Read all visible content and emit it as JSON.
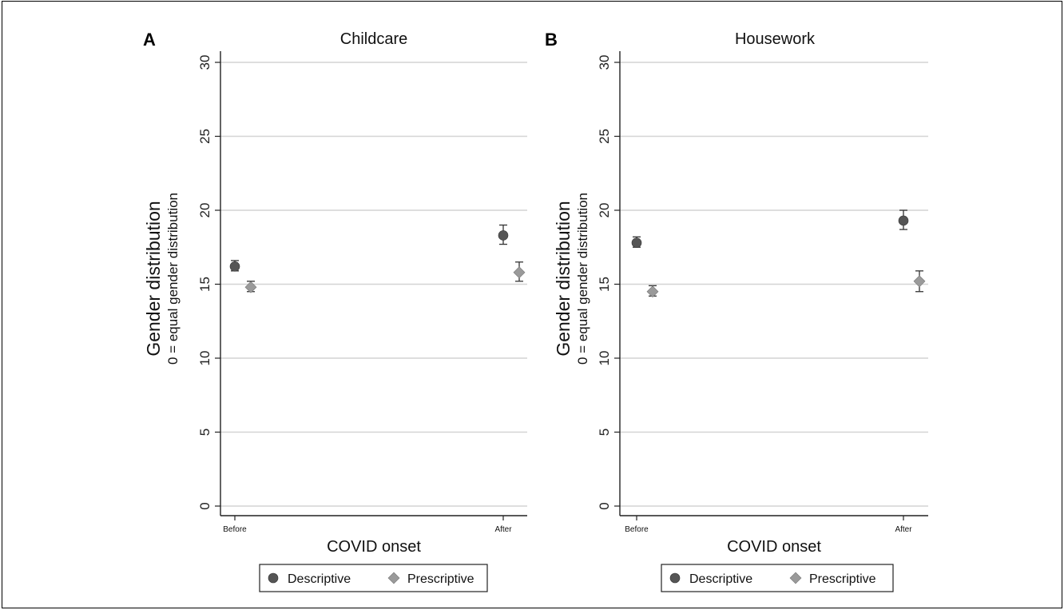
{
  "chart_data": [
    {
      "type": "scatter",
      "panel_label": "A",
      "title": "Childcare",
      "xlabel": "COVID onset",
      "ylabel": "Gender distribution",
      "ylabel_sub": "0 = equal gender distribution",
      "categories": [
        "Before",
        "After"
      ],
      "ylim": [
        0,
        30
      ],
      "yticks": [
        0,
        5,
        10,
        15,
        20,
        25,
        30
      ],
      "grid": true,
      "legend_position": "bottom",
      "series": [
        {
          "name": "Descriptive",
          "marker": "circle",
          "color": "#555555",
          "values": [
            16.2,
            18.3
          ],
          "ci_low": [
            15.9,
            17.7
          ],
          "ci_high": [
            16.6,
            19.0
          ]
        },
        {
          "name": "Prescriptive",
          "marker": "diamond",
          "color": "#9a9a9a",
          "values": [
            14.8,
            15.8
          ],
          "ci_low": [
            14.5,
            15.2
          ],
          "ci_high": [
            15.2,
            16.5
          ]
        }
      ]
    },
    {
      "type": "scatter",
      "panel_label": "B",
      "title": "Housework",
      "xlabel": "COVID onset",
      "ylabel": "Gender distribution",
      "ylabel_sub": "0 = equal gender distribution",
      "categories": [
        "Before",
        "After"
      ],
      "ylim": [
        0,
        30
      ],
      "yticks": [
        0,
        5,
        10,
        15,
        20,
        25,
        30
      ],
      "grid": true,
      "legend_position": "bottom",
      "series": [
        {
          "name": "Descriptive",
          "marker": "circle",
          "color": "#555555",
          "values": [
            17.8,
            19.3
          ],
          "ci_low": [
            17.5,
            18.7
          ],
          "ci_high": [
            18.2,
            20.0
          ]
        },
        {
          "name": "Prescriptive",
          "marker": "diamond",
          "color": "#9a9a9a",
          "values": [
            14.5,
            15.2
          ],
          "ci_low": [
            14.2,
            14.5
          ],
          "ci_high": [
            14.9,
            15.9
          ]
        }
      ]
    }
  ]
}
